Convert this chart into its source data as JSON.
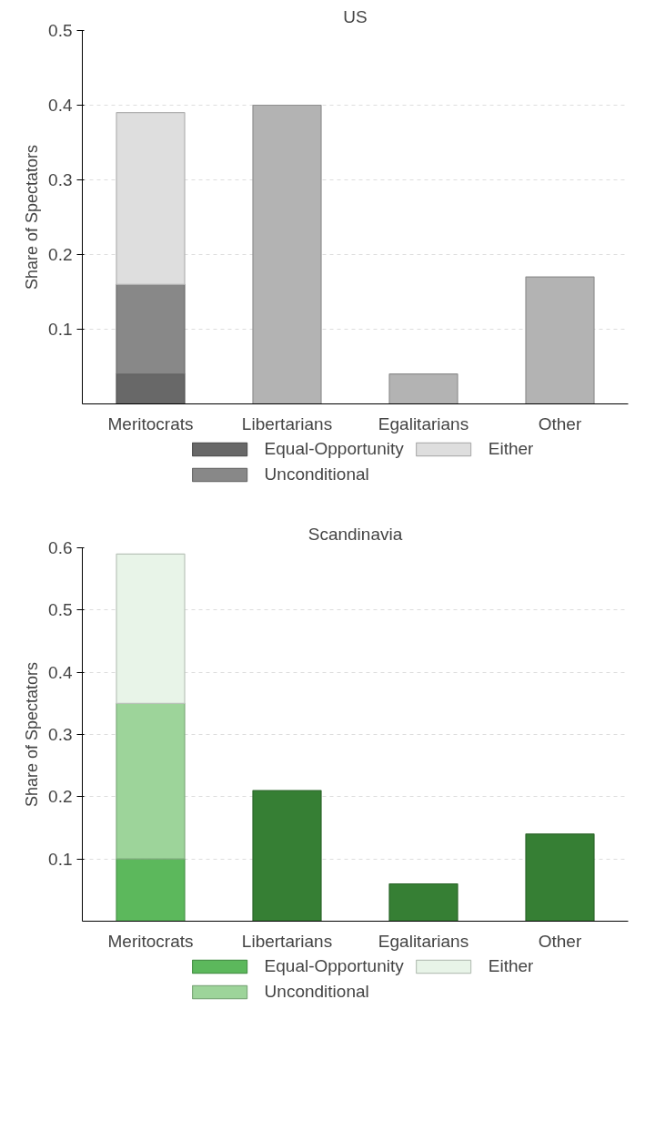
{
  "chart_data": [
    {
      "type": "bar",
      "title": "US",
      "ylabel": "Share of Spectators",
      "categories": [
        "Meritocrats",
        "Libertarians",
        "Egalitarians",
        "Other"
      ],
      "stacked": true,
      "ylim": [
        0,
        0.5
      ],
      "yticks": [
        0.1,
        0.2,
        0.3,
        0.4,
        0.5
      ],
      "grid": "y",
      "legend": "bottom",
      "series": [
        {
          "name": "Equal-Opportunity",
          "color": "#686868",
          "values": [
            0.04,
            null,
            null,
            null
          ]
        },
        {
          "name": "Unconditional",
          "color": "#888888",
          "values": [
            0.12,
            null,
            null,
            null
          ]
        },
        {
          "name": "Either",
          "color": "#dedede",
          "values": [
            0.23,
            null,
            null,
            null
          ]
        },
        {
          "color": "#b3b3b3",
          "values": [
            null,
            0.4,
            0.04,
            0.17
          ]
        }
      ]
    },
    {
      "type": "bar",
      "title": "Scandinavia",
      "ylabel": "Share of Spectators",
      "categories": [
        "Meritocrats",
        "Libertarians",
        "Egalitarians",
        "Other"
      ],
      "stacked": true,
      "ylim": [
        0,
        0.6
      ],
      "yticks": [
        0.1,
        0.2,
        0.3,
        0.4,
        0.5,
        0.6
      ],
      "grid": "y",
      "legend": "bottom",
      "series": [
        {
          "name": "Equal-Opportunity",
          "color": "#5cb85c",
          "values": [
            0.1,
            null,
            null,
            null
          ]
        },
        {
          "name": "Unconditional",
          "color": "#9dd49a",
          "values": [
            0.25,
            null,
            null,
            null
          ]
        },
        {
          "name": "Either",
          "color": "#e8f4e8",
          "values": [
            0.24,
            null,
            null,
            null
          ]
        },
        {
          "color": "#367f34",
          "values": [
            null,
            0.21,
            0.06,
            0.14
          ]
        }
      ]
    }
  ]
}
